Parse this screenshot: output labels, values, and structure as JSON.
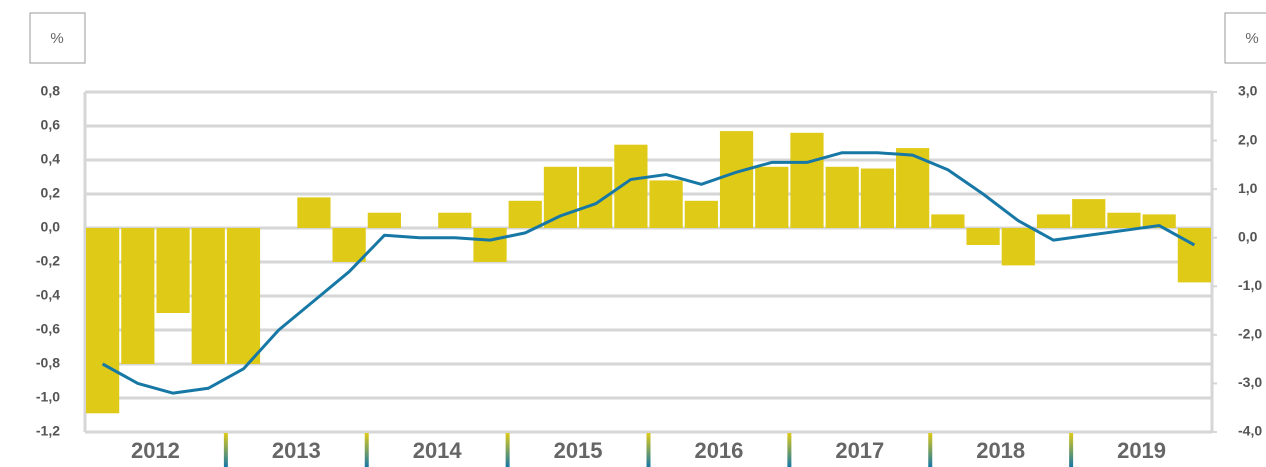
{
  "chart_data": {
    "type": "bar_line",
    "y_unit": "%",
    "y2_unit": "%",
    "year_labels": [
      "2012",
      "2013",
      "2014",
      "2015",
      "2016",
      "2017",
      "2018",
      "2019"
    ],
    "series": [
      {
        "type": "bar",
        "color": "#dfca18",
        "values": [
          -1.09,
          -0.8,
          -0.5,
          -0.8,
          -0.8,
          0,
          0.18,
          -0.2,
          0.09,
          0,
          0.09,
          -0.2,
          0.16,
          0.36,
          0.36,
          0.49,
          0.28,
          0.16,
          0.57,
          0.36,
          0.56,
          0.36,
          0.35,
          0.47,
          0.08,
          -0.1,
          -0.22,
          0.08,
          0.17,
          0.09,
          0.08,
          -0.32
        ]
      },
      {
        "type": "line",
        "axis": "y2",
        "color": "#1778a6",
        "values": [
          -2.6,
          -3.0,
          -3.2,
          -3.1,
          -2.7,
          -1.9,
          -1.3,
          -0.7,
          0.05,
          0.0,
          0.0,
          -0.05,
          0.1,
          0.45,
          0.7,
          1.2,
          1.3,
          1.1,
          1.35,
          1.55,
          1.55,
          1.75,
          1.75,
          1.7,
          1.4,
          0.9,
          0.35,
          -0.05,
          0.05,
          0.15,
          0.25,
          -0.15
        ]
      }
    ],
    "ylim": [
      -1.2,
      0.8
    ],
    "yticks": [
      {
        "value": 0.8,
        "label": "0,8"
      },
      {
        "value": 0.6,
        "label": "0,6"
      },
      {
        "value": 0.4,
        "label": "0,4"
      },
      {
        "value": 0.2,
        "label": "0,2"
      },
      {
        "value": 0,
        "label": "0,0"
      },
      {
        "value": -0.2,
        "label": "-0,2"
      },
      {
        "value": -0.4,
        "label": "-0,4"
      },
      {
        "value": -0.6,
        "label": "-0,6"
      },
      {
        "value": -0.8,
        "label": "-0,8"
      },
      {
        "value": -1.0,
        "label": "-1,0"
      },
      {
        "value": -1.2,
        "label": "-1,2"
      }
    ],
    "y2lim": [
      -4,
      3
    ],
    "y2ticks": [
      {
        "value": 3,
        "label": "3,0"
      },
      {
        "value": 2,
        "label": "2,0"
      },
      {
        "value": 1,
        "label": "1,0"
      },
      {
        "value": 0,
        "label": "0,0"
      },
      {
        "value": -1,
        "label": "-1,0"
      },
      {
        "value": -2,
        "label": "-2,0"
      },
      {
        "value": -3,
        "label": "-3,0"
      },
      {
        "value": -4,
        "label": "-4,0"
      }
    ],
    "grid": true
  }
}
